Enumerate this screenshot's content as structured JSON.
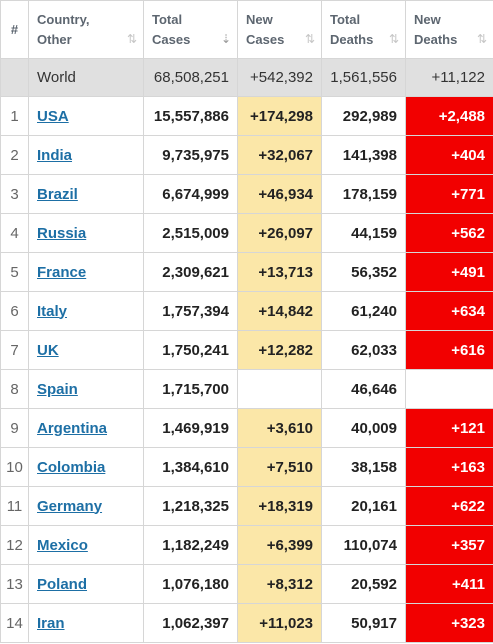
{
  "header": {
    "num": "#",
    "country_l1": "Country,",
    "country_l2": "Other",
    "total_cases_l1": "Total",
    "total_cases_l2": "Cases",
    "new_cases_l1": "New",
    "new_cases_l2": "Cases",
    "total_deaths_l1": "Total",
    "total_deaths_l2": "Deaths",
    "new_deaths_l1": "New",
    "new_deaths_l2": "Deaths"
  },
  "world": {
    "name": "World",
    "total_cases": "68,508,251",
    "new_cases": "+542,392",
    "total_deaths": "1,561,556",
    "new_deaths": "+11,122"
  },
  "rows": [
    {
      "num": "1",
      "country": "USA",
      "total_cases": "15,557,886",
      "new_cases": "+174,298",
      "total_deaths": "292,989",
      "new_deaths": "+2,488"
    },
    {
      "num": "2",
      "country": "India",
      "total_cases": "9,735,975",
      "new_cases": "+32,067",
      "total_deaths": "141,398",
      "new_deaths": "+404"
    },
    {
      "num": "3",
      "country": "Brazil",
      "total_cases": "6,674,999",
      "new_cases": "+46,934",
      "total_deaths": "178,159",
      "new_deaths": "+771"
    },
    {
      "num": "4",
      "country": "Russia",
      "total_cases": "2,515,009",
      "new_cases": "+26,097",
      "total_deaths": "44,159",
      "new_deaths": "+562"
    },
    {
      "num": "5",
      "country": "France",
      "total_cases": "2,309,621",
      "new_cases": "+13,713",
      "total_deaths": "56,352",
      "new_deaths": "+491"
    },
    {
      "num": "6",
      "country": "Italy",
      "total_cases": "1,757,394",
      "new_cases": "+14,842",
      "total_deaths": "61,240",
      "new_deaths": "+634"
    },
    {
      "num": "7",
      "country": "UK",
      "total_cases": "1,750,241",
      "new_cases": "+12,282",
      "total_deaths": "62,033",
      "new_deaths": "+616"
    },
    {
      "num": "8",
      "country": "Spain",
      "total_cases": "1,715,700",
      "new_cases": "",
      "total_deaths": "46,646",
      "new_deaths": ""
    },
    {
      "num": "9",
      "country": "Argentina",
      "total_cases": "1,469,919",
      "new_cases": "+3,610",
      "total_deaths": "40,009",
      "new_deaths": "+121"
    },
    {
      "num": "10",
      "country": "Colombia",
      "total_cases": "1,384,610",
      "new_cases": "+7,510",
      "total_deaths": "38,158",
      "new_deaths": "+163"
    },
    {
      "num": "11",
      "country": "Germany",
      "total_cases": "1,218,325",
      "new_cases": "+18,319",
      "total_deaths": "20,161",
      "new_deaths": "+622"
    },
    {
      "num": "12",
      "country": "Mexico",
      "total_cases": "1,182,249",
      "new_cases": "+6,399",
      "total_deaths": "110,074",
      "new_deaths": "+357"
    },
    {
      "num": "13",
      "country": "Poland",
      "total_cases": "1,076,180",
      "new_cases": "+8,312",
      "total_deaths": "20,592",
      "new_deaths": "+411"
    },
    {
      "num": "14",
      "country": "Iran",
      "total_cases": "1,062,397",
      "new_cases": "+11,023",
      "total_deaths": "50,917",
      "new_deaths": "+323"
    }
  ],
  "colors": {
    "new_cases_bg": "#fbe7a8",
    "new_deaths_bg": "#f20000",
    "world_row_bg": "#e0e0e0",
    "link": "#1d6fa5"
  },
  "icons": {
    "sort": "sort-icon",
    "sort_active": "sort-descending-icon"
  }
}
